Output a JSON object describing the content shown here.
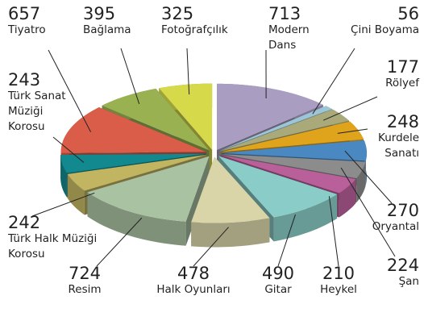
{
  "chart_data": {
    "type": "pie",
    "categories": [
      "Modern Dans",
      "Çini Boyama",
      "Rölyef",
      "Kurdele Sanatı",
      "Oryantal",
      "Şan",
      "Heykel",
      "Gitar",
      "Halk Oyunları",
      "Resim",
      "Türk Halk Müziği Korosu",
      "Türk Sanat Müziği Korosu",
      "Tiyatro",
      "Bağlama",
      "Fotoğrafçılık"
    ],
    "values": [
      713,
      56,
      177,
      248,
      270,
      224,
      210,
      490,
      478,
      724,
      242,
      243,
      657,
      395,
      325
    ],
    "colors": [
      "#a99dc2",
      "#9cc6d6",
      "#aaa97a",
      "#e0a31c",
      "#4a88c2",
      "#8c8c8c",
      "#b9609b",
      "#8acdc8",
      "#d9d5a9",
      "#a9c2a1",
      "#c2b562",
      "#12888f",
      "#d95d48",
      "#99b151",
      "#d5d94a"
    ]
  }
}
